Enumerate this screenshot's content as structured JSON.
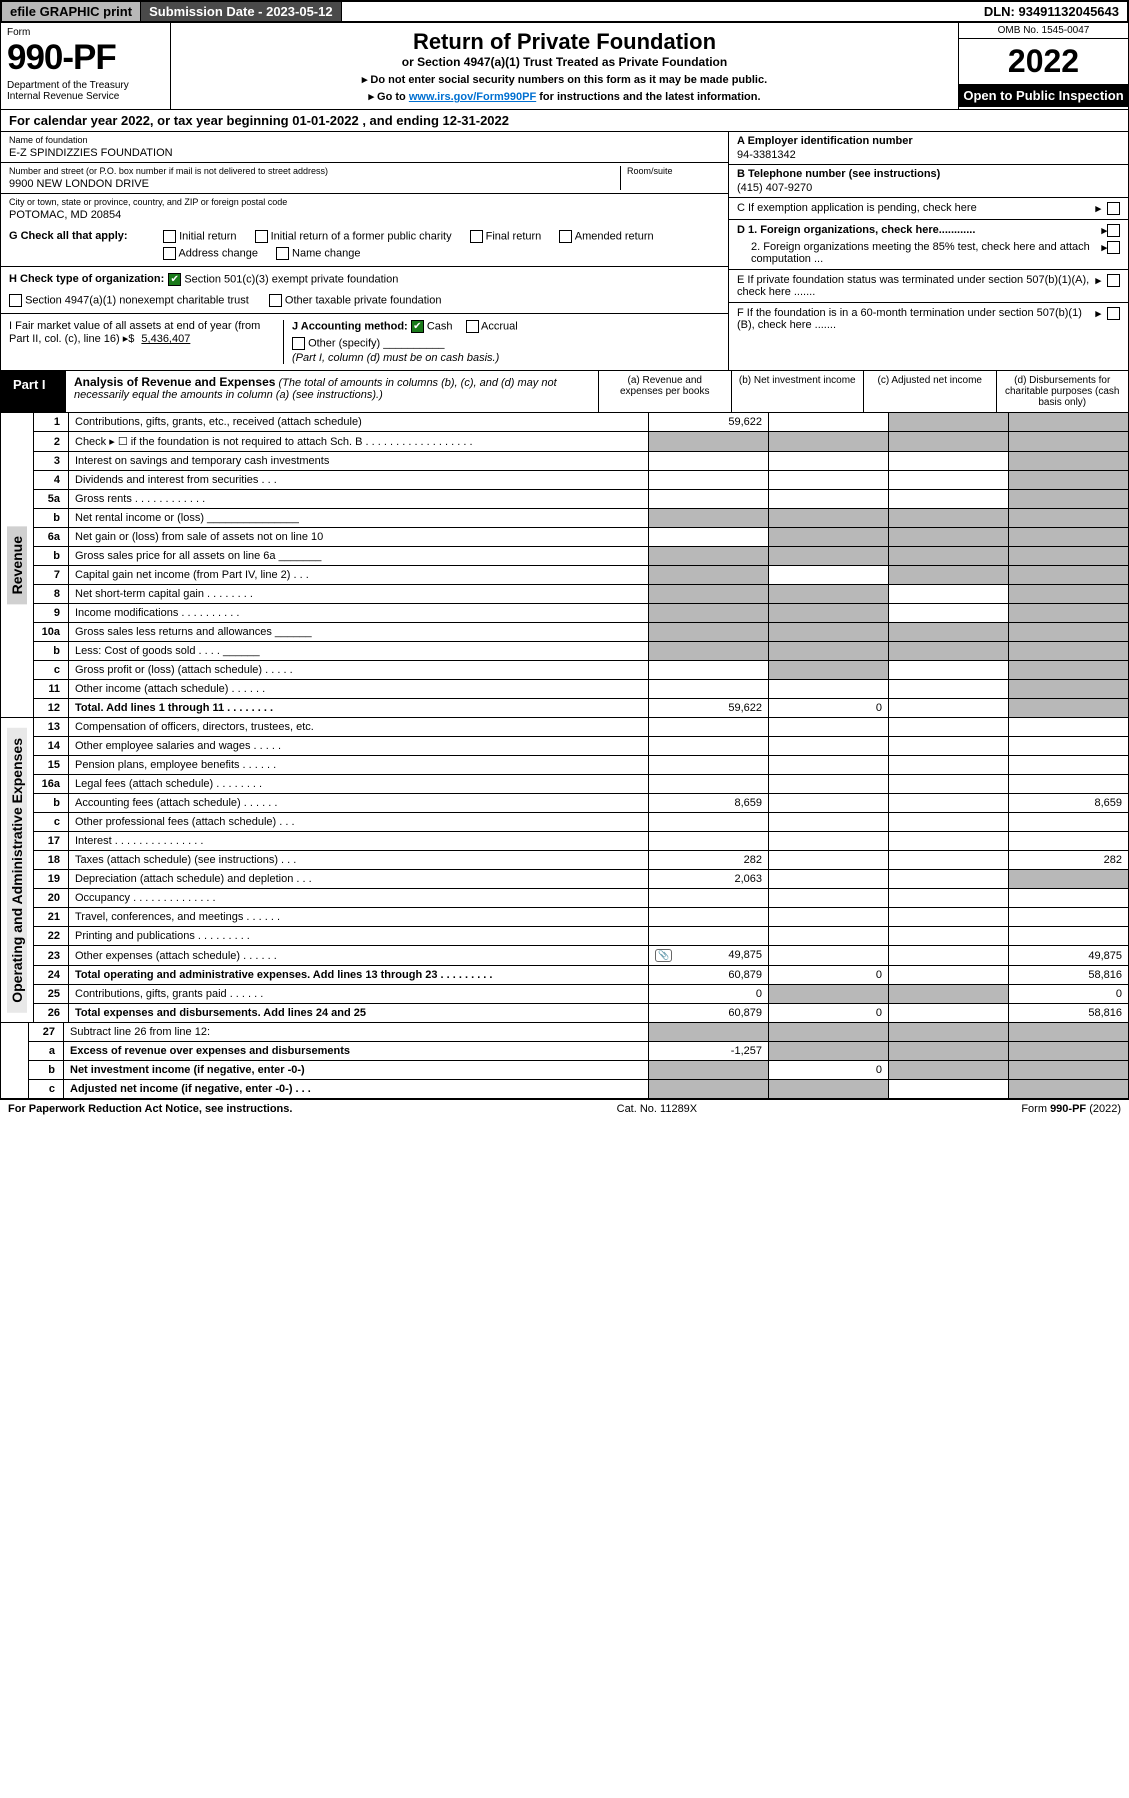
{
  "topbar": {
    "efile": "efile GRAPHIC print",
    "submission_label": "Submission Date - 2023-05-12",
    "dln": "DLN: 93491132045643"
  },
  "header": {
    "form_label": "Form",
    "form_number": "990-PF",
    "dept": "Department of the Treasury\nInternal Revenue Service",
    "title": "Return of Private Foundation",
    "subtitle": "or Section 4947(a)(1) Trust Treated as Private Foundation",
    "note1_prefix": "▸ Do not enter social security numbers on this form as it may be made public.",
    "note2_prefix": "▸ Go to ",
    "note2_link": "www.irs.gov/Form990PF",
    "note2_suffix": " for instructions and the latest information.",
    "omb": "OMB No. 1545-0047",
    "year": "2022",
    "open": "Open to Public Inspection"
  },
  "cal_year": "For calendar year 2022, or tax year beginning 01-01-2022               , and ending 12-31-2022",
  "foundation": {
    "name_label": "Name of foundation",
    "name": "E-Z SPINDIZZIES FOUNDATION",
    "addr_label": "Number and street (or P.O. box number if mail is not delivered to street address)",
    "addr": "9900 NEW LONDON DRIVE",
    "room_label": "Room/suite",
    "city_label": "City or town, state or province, country, and ZIP or foreign postal code",
    "city": "POTOMAC, MD  20854"
  },
  "rightinfo": {
    "a_label": "A Employer identification number",
    "a_val": "94-3381342",
    "b_label": "B Telephone number (see instructions)",
    "b_val": "(415) 407-9270",
    "c_label": "C If exemption application is pending, check here",
    "d1": "D 1. Foreign organizations, check here............",
    "d2": "2. Foreign organizations meeting the 85% test, check here and attach computation ...",
    "e": "E  If private foundation status was terminated under section 507(b)(1)(A), check here .......",
    "f": "F  If the foundation is in a 60-month termination under section 507(b)(1)(B), check here .......",
    "arrow": "▸"
  },
  "checks": {
    "g_label": "G Check all that apply:",
    "g_opts": [
      "Initial return",
      "Initial return of a former public charity",
      "Final return",
      "Amended return",
      "Address change",
      "Name change"
    ],
    "h_label": "H Check type of organization:",
    "h_opt1": "Section 501(c)(3) exempt private foundation",
    "h_opt2": "Section 4947(a)(1) nonexempt charitable trust",
    "h_opt3": "Other taxable private foundation",
    "i_label": "I Fair market value of all assets at end of year (from Part II, col. (c), line 16) ▸$",
    "i_val": "5,436,407",
    "j_label": "J Accounting method:",
    "j_cash": "Cash",
    "j_accrual": "Accrual",
    "j_other": "Other (specify)",
    "j_note": "(Part I, column (d) must be on cash basis.)"
  },
  "part1": {
    "label": "Part I",
    "title": "Analysis of Revenue and Expenses",
    "note": "(The total of amounts in columns (b), (c), and (d) may not necessarily equal the amounts in column (a) (see instructions).)",
    "col_a": "(a)  Revenue and expenses per books",
    "col_b": "(b)  Net investment income",
    "col_c": "(c)  Adjusted net income",
    "col_d": "(d)  Disbursements for charitable purposes (cash basis only)"
  },
  "side": {
    "revenue": "Revenue",
    "expenses": "Operating and Administrative Expenses"
  },
  "rows": [
    {
      "n": "1",
      "d": "Contributions, gifts, grants, etc., received (attach schedule)",
      "a": "59,622",
      "b": "",
      "c": "g",
      "dd": "g"
    },
    {
      "n": "2",
      "d": "Check ▸ ☐ if the foundation is not required to attach Sch. B   . . . . . . . . . . . . . . . . . .",
      "a": "g",
      "b": "g",
      "c": "g",
      "dd": "g"
    },
    {
      "n": "3",
      "d": "Interest on savings and temporary cash investments",
      "a": "",
      "b": "",
      "c": "",
      "dd": "g"
    },
    {
      "n": "4",
      "d": "Dividends and interest from securities   .  .  .",
      "a": "",
      "b": "",
      "c": "",
      "dd": "g"
    },
    {
      "n": "5a",
      "d": "Gross rents    .  .  .  .  .  .  .  .  .  .  .  .",
      "a": "",
      "b": "",
      "c": "",
      "dd": "g"
    },
    {
      "n": "b",
      "d": "Net rental income or (loss)   _______________",
      "a": "g",
      "b": "g",
      "c": "g",
      "dd": "g"
    },
    {
      "n": "6a",
      "d": "Net gain or (loss) from sale of assets not on line 10",
      "a": "",
      "b": "g",
      "c": "g",
      "dd": "g"
    },
    {
      "n": "b",
      "d": "Gross sales price for all assets on line 6a _______",
      "a": "g",
      "b": "g",
      "c": "g",
      "dd": "g"
    },
    {
      "n": "7",
      "d": "Capital gain net income (from Part IV, line 2)   .  .  .",
      "a": "g",
      "b": "",
      "c": "g",
      "dd": "g"
    },
    {
      "n": "8",
      "d": "Net short-term capital gain  .  .  .  .  .  .  .  .",
      "a": "g",
      "b": "g",
      "c": "",
      "dd": "g"
    },
    {
      "n": "9",
      "d": "Income modifications  .  .  .  .  .  .  .  .  .  .",
      "a": "g",
      "b": "g",
      "c": "",
      "dd": "g"
    },
    {
      "n": "10a",
      "d": "Gross sales less returns and allowances  ______",
      "a": "g",
      "b": "g",
      "c": "g",
      "dd": "g"
    },
    {
      "n": "b",
      "d": "Less: Cost of goods sold   .  .  .  .    ______",
      "a": "g",
      "b": "g",
      "c": "g",
      "dd": "g"
    },
    {
      "n": "c",
      "d": "Gross profit or (loss) (attach schedule)   .  .  .  .  .",
      "a": "",
      "b": "g",
      "c": "",
      "dd": "g"
    },
    {
      "n": "11",
      "d": "Other income (attach schedule)   .  .  .  .  .  .",
      "a": "",
      "b": "",
      "c": "",
      "dd": "g"
    },
    {
      "n": "12",
      "d": "Total. Add lines 1 through 11  .  .  .  .  .  .  .  .",
      "a": "59,622",
      "b": "0",
      "c": "",
      "dd": "g",
      "bold": true
    }
  ],
  "rows_exp": [
    {
      "n": "13",
      "d": "Compensation of officers, directors, trustees, etc.",
      "a": "",
      "b": "",
      "c": "",
      "dd": ""
    },
    {
      "n": "14",
      "d": "Other employee salaries and wages   .  .  .  .  .",
      "a": "",
      "b": "",
      "c": "",
      "dd": ""
    },
    {
      "n": "15",
      "d": "Pension plans, employee benefits  .  .  .  .  .  .",
      "a": "",
      "b": "",
      "c": "",
      "dd": ""
    },
    {
      "n": "16a",
      "d": "Legal fees (attach schedule)  .  .  .  .  .  .  .  .",
      "a": "",
      "b": "",
      "c": "",
      "dd": ""
    },
    {
      "n": "b",
      "d": "Accounting fees (attach schedule)  .  .  .  .  .  .",
      "a": "8,659",
      "b": "",
      "c": "",
      "dd": "8,659"
    },
    {
      "n": "c",
      "d": "Other professional fees (attach schedule)   .  .  .",
      "a": "",
      "b": "",
      "c": "",
      "dd": ""
    },
    {
      "n": "17",
      "d": "Interest  .  .  .  .  .  .  .  .  .  .  .  .  .  .  .",
      "a": "",
      "b": "",
      "c": "",
      "dd": ""
    },
    {
      "n": "18",
      "d": "Taxes (attach schedule) (see instructions)   .  .  .",
      "a": "282",
      "b": "",
      "c": "",
      "dd": "282"
    },
    {
      "n": "19",
      "d": "Depreciation (attach schedule) and depletion   .  .  .",
      "a": "2,063",
      "b": "",
      "c": "",
      "dd": "g"
    },
    {
      "n": "20",
      "d": "Occupancy  .  .  .  .  .  .  .  .  .  .  .  .  .  .",
      "a": "",
      "b": "",
      "c": "",
      "dd": ""
    },
    {
      "n": "21",
      "d": "Travel, conferences, and meetings  .  .  .  .  .  .",
      "a": "",
      "b": "",
      "c": "",
      "dd": ""
    },
    {
      "n": "22",
      "d": "Printing and publications  .  .  .  .  .  .  .  .  .",
      "a": "",
      "b": "",
      "c": "",
      "dd": ""
    },
    {
      "n": "23",
      "d": "Other expenses (attach schedule)  .  .  .  .  .  .",
      "a": "49,875",
      "b": "",
      "c": "",
      "dd": "49,875",
      "icon": true
    },
    {
      "n": "24",
      "d": "Total operating and administrative expenses. Add lines 13 through 23  .  .  .  .  .  .  .  .  .",
      "a": "60,879",
      "b": "0",
      "c": "",
      "dd": "58,816",
      "bold": true
    },
    {
      "n": "25",
      "d": "Contributions, gifts, grants paid   .  .  .  .  .  .",
      "a": "0",
      "b": "g",
      "c": "g",
      "dd": "0"
    },
    {
      "n": "26",
      "d": "Total expenses and disbursements. Add lines 24 and 25",
      "a": "60,879",
      "b": "0",
      "c": "",
      "dd": "58,816",
      "bold": true
    }
  ],
  "rows_net": [
    {
      "n": "27",
      "d": "Subtract line 26 from line 12:",
      "a": "g",
      "b": "g",
      "c": "g",
      "dd": "g"
    },
    {
      "n": "a",
      "d": "Excess of revenue over expenses and disbursements",
      "a": "-1,257",
      "b": "g",
      "c": "g",
      "dd": "g",
      "bold": true
    },
    {
      "n": "b",
      "d": "Net investment income (if negative, enter -0-)",
      "a": "g",
      "b": "0",
      "c": "g",
      "dd": "g",
      "bold": true
    },
    {
      "n": "c",
      "d": "Adjusted net income (if negative, enter -0-)   .  .  .",
      "a": "g",
      "b": "g",
      "c": "",
      "dd": "g",
      "bold": true
    }
  ],
  "footer": {
    "left": "For Paperwork Reduction Act Notice, see instructions.",
    "mid": "Cat. No. 11289X",
    "right": "Form 990-PF (2022)"
  },
  "colors": {
    "grey": "#b8b8b8",
    "darkgrey": "#4a4a4a",
    "link": "#0070d1",
    "check": "#1a7a1a"
  }
}
